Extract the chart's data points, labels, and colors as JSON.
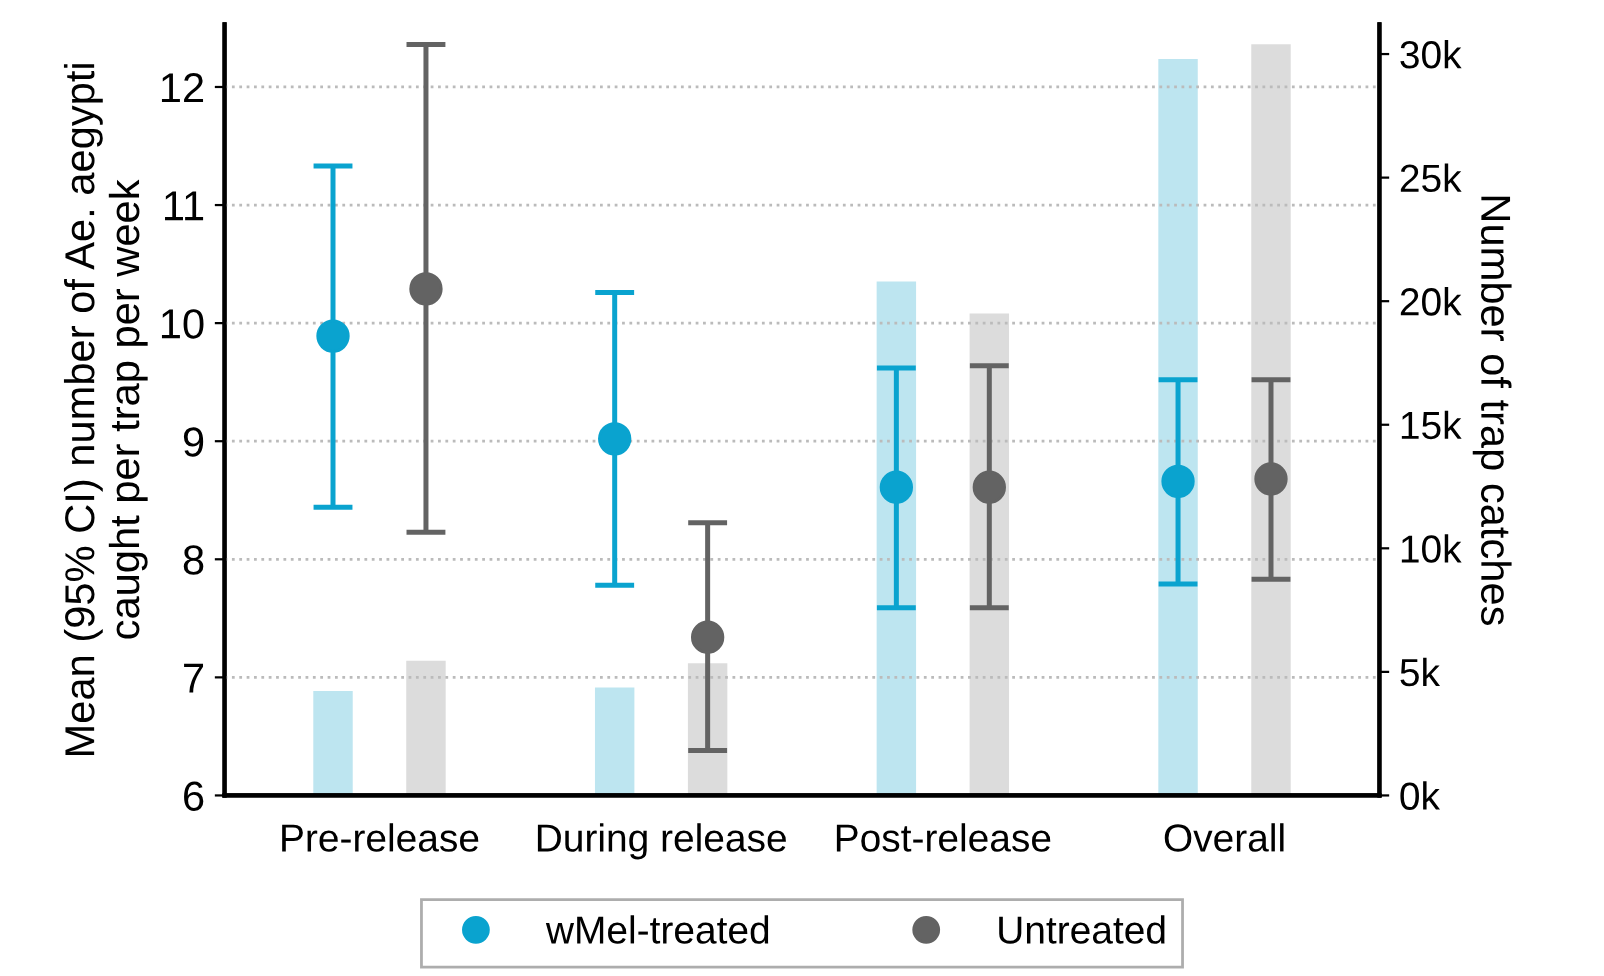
{
  "chart_data": {
    "type": "scatter",
    "categories": [
      "Pre-release",
      "During release",
      "Post-release",
      "Overall"
    ],
    "ylabel": "Mean (95% CI) number of Ae. aegypti\ncaught per trap per week",
    "y2label": "Number of trap catches",
    "ylim": [
      6,
      12.53
    ],
    "yticks": [
      6,
      7,
      8,
      9,
      10,
      11,
      12
    ],
    "y2lim": [
      0,
      31200
    ],
    "y2ticks": [
      {
        "value": 0,
        "label": "0k"
      },
      {
        "value": 5000,
        "label": "5k"
      },
      {
        "value": 10000,
        "label": "10k"
      },
      {
        "value": 15000,
        "label": "15k"
      },
      {
        "value": 20000,
        "label": "20k"
      },
      {
        "value": 25000,
        "label": "25k"
      },
      {
        "value": 30000,
        "label": "30k"
      }
    ],
    "grid": "y",
    "legend": "bottom",
    "marker": "circle",
    "series": [
      {
        "type": "bar",
        "axis": "y2",
        "color": "#bde5f0",
        "values": [
          4230,
          4370,
          20800,
          29800
        ]
      },
      {
        "type": "bar",
        "axis": "y2",
        "color": "#dcdcdc",
        "values": [
          5450,
          5350,
          19500,
          30400
        ]
      },
      {
        "name": "wMel-treated",
        "color": "#0aa3cf",
        "values": [
          9.89,
          9.02,
          8.61,
          8.66
        ],
        "errors": [
          [
            8.44,
            11.33
          ],
          [
            7.78,
            10.26
          ],
          [
            7.59,
            9.62
          ],
          [
            7.79,
            9.52
          ]
        ]
      },
      {
        "name": "Untreated",
        "color": "#636363",
        "values": [
          10.29,
          7.34,
          8.61,
          8.68
        ],
        "errors": [
          [
            8.23,
            12.36
          ],
          [
            6.38,
            8.31
          ],
          [
            7.59,
            9.64
          ],
          [
            7.83,
            9.52
          ]
        ]
      }
    ]
  }
}
